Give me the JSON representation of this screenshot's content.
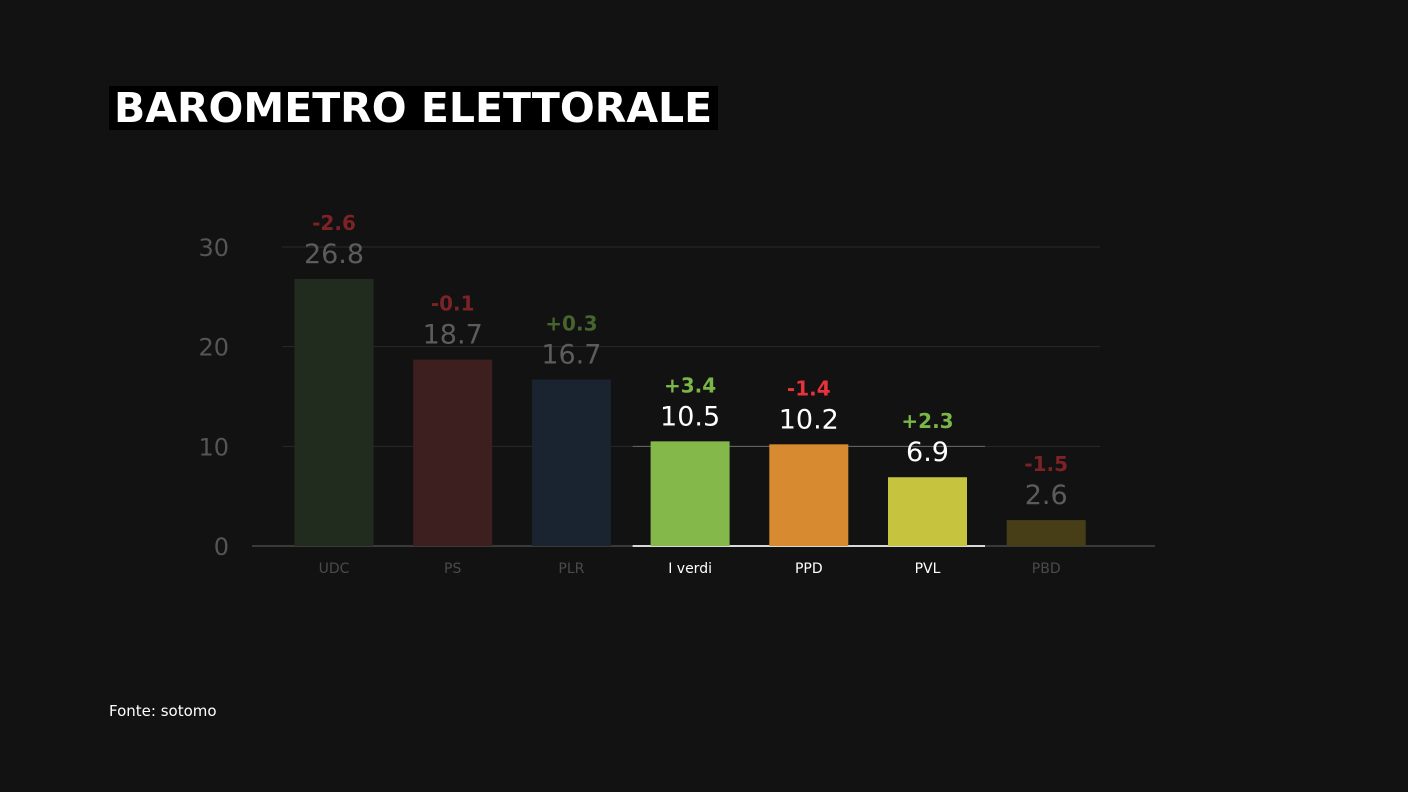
{
  "header": {
    "title": "BAROMETRO ELETTORALE"
  },
  "footer": {
    "source": "Fonte: sotomo"
  },
  "colors": {
    "background": "#121212",
    "gridline": "#2a2a2a",
    "axis_tick_label": "#555555",
    "positive_change": "#7ab648",
    "negative_change": "#e8323a"
  },
  "chart_data": {
    "type": "bar",
    "title": "BAROMETRO ELETTORALE",
    "xlabel": "",
    "ylabel": "",
    "ylim": [
      0,
      30
    ],
    "yticks": [
      0,
      10,
      20,
      30
    ],
    "grid": true,
    "categories": [
      "UDC",
      "PS",
      "PLR",
      "I verdi",
      "PPD",
      "PVL",
      "PBD"
    ],
    "values": [
      26.8,
      18.7,
      16.7,
      10.5,
      10.2,
      6.9,
      2.6
    ],
    "value_labels": [
      "26.8",
      "18.7",
      "16.7",
      "10.5",
      "10.2",
      "6.9",
      "2.6"
    ],
    "changes": [
      "-2.6",
      "-0.1",
      "+0.3",
      "+3.4",
      "-1.4",
      "+2.3",
      "-1.5"
    ],
    "bar_colors": [
      "#222c1e",
      "#3e1f1f",
      "#1a2431",
      "#84b84a",
      "#d88a30",
      "#c6c43e",
      "#473d17"
    ],
    "highlighted": [
      false,
      false,
      false,
      true,
      true,
      true,
      false
    ]
  }
}
